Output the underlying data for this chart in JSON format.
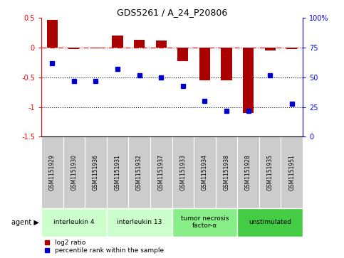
{
  "title": "GDS5261 / A_24_P20806",
  "samples": [
    "GSM1151929",
    "GSM1151930",
    "GSM1151936",
    "GSM1151931",
    "GSM1151932",
    "GSM1151937",
    "GSM1151933",
    "GSM1151934",
    "GSM1151938",
    "GSM1151928",
    "GSM1151935",
    "GSM1151951"
  ],
  "log2_ratio": [
    0.47,
    -0.02,
    -0.01,
    0.2,
    0.13,
    0.12,
    -0.22,
    -0.55,
    -0.55,
    -1.1,
    -0.05,
    -0.02
  ],
  "percentile": [
    62,
    47,
    47,
    57,
    52,
    50,
    43,
    30,
    22,
    22,
    52,
    28
  ],
  "ylim_left": [
    -1.5,
    0.5
  ],
  "ylim_right": [
    0,
    100
  ],
  "agent_groups": [
    {
      "label": "interleukin 4",
      "start": 0,
      "end": 3,
      "color": "#ccffcc"
    },
    {
      "label": "interleukin 13",
      "start": 3,
      "end": 6,
      "color": "#ccffcc"
    },
    {
      "label": "tumor necrosis\nfactor-α",
      "start": 6,
      "end": 9,
      "color": "#88ee88"
    },
    {
      "label": "unstimulated",
      "start": 9,
      "end": 12,
      "color": "#44cc44"
    }
  ],
  "bar_color": "#aa0000",
  "dot_color": "#0000cc",
  "legend_bar_label": "log2 ratio",
  "legend_dot_label": "percentile rank within the sample",
  "agent_label": "agent",
  "background_color": "#ffffff",
  "sample_box_color": "#cccccc",
  "title_fontsize": 9
}
